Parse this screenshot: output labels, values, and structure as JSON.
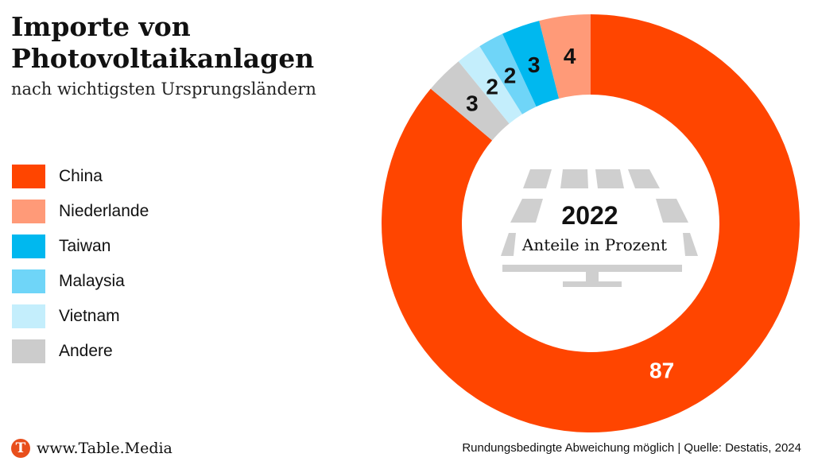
{
  "header": {
    "title_line1": "Importe von",
    "title_line2": "Photovoltaikanlagen",
    "subtitle": "nach wichtigsten Ursprungsländern"
  },
  "chart_data": {
    "type": "pie",
    "variant": "donut",
    "center_year": "2022",
    "center_label": "Anteile in Prozent",
    "categories": [
      "China",
      "Niederlande",
      "Taiwan",
      "Malaysia",
      "Vietnam",
      "Andere"
    ],
    "values": [
      87,
      4,
      3,
      2,
      2,
      3
    ],
    "colors": [
      "#ff4500",
      "#ff9a78",
      "#00b8ef",
      "#6fd5f8",
      "#c4eefc",
      "#cccccc"
    ],
    "legend_position": "left",
    "start": "top",
    "direction": "clockwise"
  },
  "footer": {
    "brand_logo": "T",
    "brand": "www.Table.Media",
    "source": "Rundungsbedingte Abweichung möglich | Quelle: Destatis, 2024"
  }
}
